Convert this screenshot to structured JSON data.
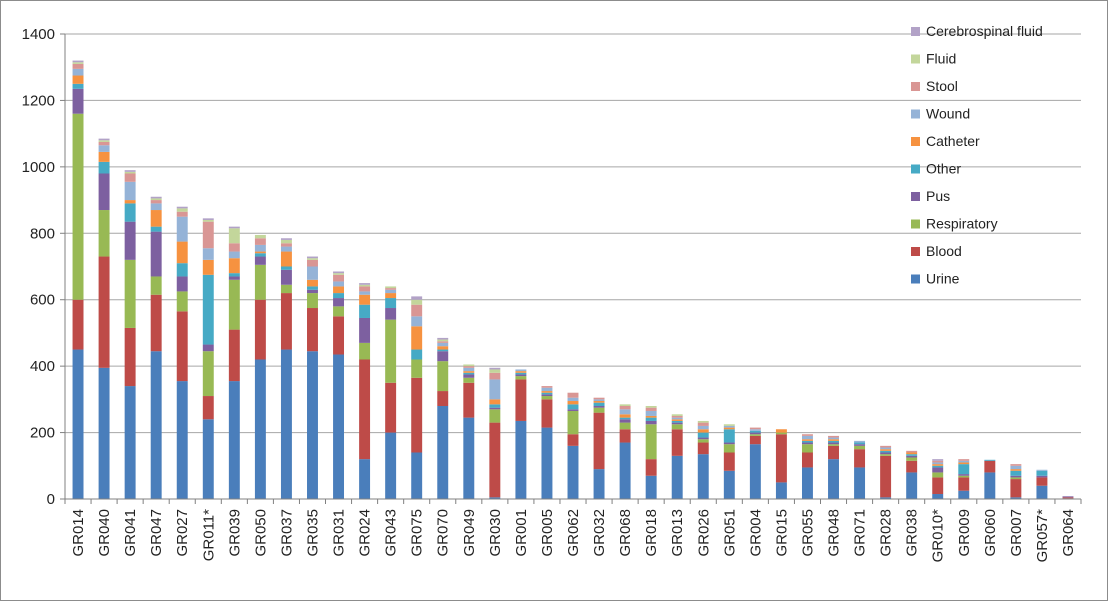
{
  "chart_data": {
    "type": "bar",
    "stacked": true,
    "title": "",
    "xlabel": "",
    "ylabel": "",
    "ylim": [
      0,
      1400
    ],
    "yticks": [
      0,
      200,
      400,
      600,
      800,
      1000,
      1200,
      1400
    ],
    "grid": "horizontal",
    "legend_position": "right",
    "categories": [
      "GR014",
      "GR040",
      "GR041",
      "GR047",
      "GR027",
      "GR011*",
      "GR039",
      "GR050",
      "GR037",
      "GR035",
      "GR031",
      "GR024",
      "GR043",
      "GR075",
      "GR070",
      "GR049",
      "GR030",
      "GR001",
      "GR005",
      "GR062",
      "GR032",
      "GR068",
      "GR018",
      "GR013",
      "GR026",
      "GR051",
      "GR004",
      "GR015",
      "GR055",
      "GR048",
      "GR071",
      "GR028",
      "GR038",
      "GR010*",
      "GR009",
      "GR060",
      "GR007",
      "GR057*",
      "GR064"
    ],
    "series": [
      {
        "name": "Urine",
        "color": "#4a7ebb",
        "values": [
          450,
          395,
          340,
          445,
          355,
          240,
          355,
          420,
          450,
          445,
          435,
          120,
          200,
          140,
          280,
          245,
          5,
          235,
          215,
          160,
          90,
          170,
          70,
          130,
          135,
          85,
          165,
          50,
          95,
          120,
          95,
          5,
          80,
          15,
          25,
          80,
          5,
          40,
          2
        ]
      },
      {
        "name": "Blood",
        "color": "#be4b48",
        "values": [
          150,
          335,
          175,
          170,
          210,
          70,
          155,
          180,
          170,
          130,
          115,
          300,
          150,
          225,
          45,
          105,
          225,
          125,
          85,
          35,
          170,
          40,
          50,
          80,
          35,
          55,
          25,
          145,
          45,
          40,
          55,
          125,
          35,
          50,
          40,
          35,
          55,
          25,
          3
        ]
      },
      {
        "name": "Respiratory",
        "color": "#98b954",
        "values": [
          560,
          140,
          205,
          55,
          60,
          135,
          150,
          105,
          25,
          45,
          30,
          50,
          190,
          55,
          90,
          15,
          40,
          10,
          10,
          70,
          15,
          20,
          105,
          15,
          10,
          25,
          5,
          5,
          25,
          5,
          10,
          5,
          10,
          15,
          5,
          0,
          5,
          0,
          0
        ]
      },
      {
        "name": "Pus",
        "color": "#7d60a0",
        "values": [
          75,
          110,
          115,
          135,
          45,
          20,
          10,
          25,
          45,
          10,
          25,
          75,
          35,
          0,
          30,
          10,
          5,
          5,
          5,
          5,
          5,
          10,
          10,
          5,
          5,
          5,
          5,
          0,
          5,
          5,
          5,
          5,
          5,
          15,
          5,
          0,
          5,
          5,
          3
        ]
      },
      {
        "name": "Other",
        "color": "#46aac5",
        "values": [
          15,
          35,
          55,
          15,
          40,
          210,
          10,
          10,
          10,
          10,
          15,
          40,
          30,
          30,
          5,
          5,
          10,
          5,
          5,
          15,
          10,
          5,
          10,
          5,
          15,
          40,
          5,
          0,
          5,
          5,
          5,
          5,
          5,
          5,
          30,
          3,
          15,
          15,
          0
        ]
      },
      {
        "name": "Catheter",
        "color": "#f69240",
        "values": [
          25,
          30,
          10,
          50,
          65,
          45,
          45,
          5,
          45,
          20,
          20,
          30,
          15,
          70,
          10,
          5,
          15,
          5,
          5,
          10,
          5,
          10,
          5,
          5,
          10,
          5,
          0,
          10,
          5,
          5,
          0,
          5,
          5,
          5,
          5,
          0,
          5,
          0,
          0
        ]
      },
      {
        "name": "Wound",
        "color": "#95b3d7",
        "values": [
          20,
          20,
          55,
          20,
          75,
          35,
          20,
          20,
          15,
          40,
          15,
          10,
          10,
          30,
          10,
          10,
          60,
          5,
          10,
          10,
          5,
          15,
          15,
          5,
          10,
          5,
          5,
          0,
          10,
          5,
          5,
          5,
          0,
          5,
          5,
          0,
          10,
          3,
          0
        ]
      },
      {
        "name": "Stool",
        "color": "#d99694",
        "values": [
          15,
          10,
          25,
          10,
          15,
          80,
          25,
          20,
          10,
          20,
          20,
          15,
          5,
          35,
          5,
          5,
          20,
          0,
          5,
          15,
          5,
          10,
          10,
          5,
          10,
          0,
          5,
          0,
          5,
          5,
          0,
          5,
          5,
          5,
          5,
          0,
          5,
          0,
          0
        ]
      },
      {
        "name": "Fluid",
        "color": "#c3d69b",
        "values": [
          5,
          5,
          5,
          5,
          10,
          5,
          45,
          10,
          10,
          5,
          5,
          5,
          5,
          15,
          5,
          5,
          10,
          0,
          0,
          0,
          0,
          5,
          5,
          5,
          5,
          5,
          0,
          0,
          0,
          0,
          0,
          0,
          0,
          0,
          0,
          0,
          0,
          0,
          0
        ]
      },
      {
        "name": "Cerebrospinal fluid",
        "color": "#b2a2c7",
        "values": [
          5,
          5,
          5,
          5,
          5,
          5,
          5,
          0,
          5,
          5,
          5,
          5,
          0,
          10,
          5,
          0,
          5,
          0,
          0,
          0,
          0,
          0,
          0,
          0,
          0,
          0,
          0,
          0,
          0,
          0,
          0,
          0,
          0,
          5,
          0,
          0,
          0,
          0,
          0
        ]
      }
    ]
  }
}
